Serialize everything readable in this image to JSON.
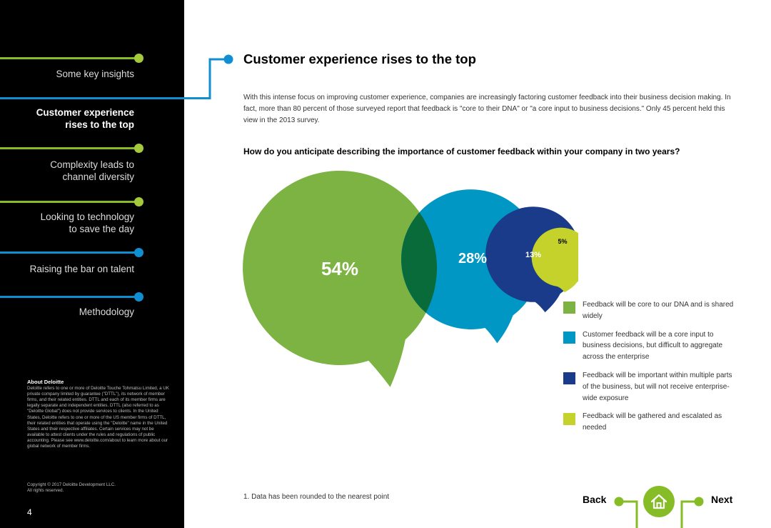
{
  "sidebar": {
    "items": [
      {
        "label": "Some key insights",
        "active": false
      },
      {
        "label": "Customer experience rises to the top",
        "line1": "Customer experience",
        "line2": "rises to the top",
        "active": true
      },
      {
        "label": "Complexity leads to channel diversity",
        "line1": "Complexity leads to",
        "line2": "channel diversity",
        "active": false
      },
      {
        "label": "Looking to technology to save the day",
        "line1": "Looking to technology",
        "line2": "to save the day",
        "active": false
      },
      {
        "label": "Raising the bar on talent",
        "active": false
      },
      {
        "label": "Methodology",
        "active": false
      }
    ],
    "about_title": "About Deloitte",
    "about_text": "Deloitte refers to one or more of Deloitte Touche Tohmatsu Limited, a UK private company limited by guarantee (\"DTTL\"), its network of member firms, and their related entities. DTTL and each of its member firms are legally separate and independent entities. DTTL (also referred to as \"Deloitte Global\") does not provide services to clients. In the United States, Deloitte refers to one or more of the US member firms of DTTL, their related entities that operate using the \"Deloitte\" name in the United States and their respective affiliates. Certain services may not be available to attest clients under the rules and regulations of public accounting. Please see www.deloitte.com/about to learn more about our global network of member firms.",
    "copyright_line1": "Copyright © 2017 Deloitte Development LLC.",
    "copyright_line2": "All rights reserved.",
    "page_number": "4"
  },
  "main": {
    "title": "Customer experience rises to the top",
    "intro": "With this intense focus on improving customer experience, companies are increasingly factoring customer feedback into their business decision making. In fact, more than 80 percent of those surveyed report that feedback is \"core to their DNA\" or \"a core input to business decisions.\" Only 45 percent held this view in the 2013 survey.",
    "question": "How do you anticipate describing the importance of customer feedback within your company in two years?",
    "footnote": "1. Data has been rounded to the nearest point"
  },
  "chart_data": {
    "type": "bubble",
    "title": "How do you anticipate describing the importance of customer feedback within your company in two years?",
    "series": [
      {
        "name": "Feedback will be core to our DNA and is shared widely",
        "value": 54,
        "label": "54%",
        "color": "#7cb342"
      },
      {
        "name": "Customer feedback will be a core input to business decisions, but difficult to aggregate across the enterprise",
        "value": 28,
        "label": "28%",
        "color": "#0097c4"
      },
      {
        "name": "Feedback will be important within multiple parts of the business, but will not receive enterprise-wide exposure",
        "value": 13,
        "label": "13%",
        "color": "#1a3a8a"
      },
      {
        "name": "Feedback will be gathered and escalated as needed",
        "value": 5,
        "label": "5%",
        "color": "#c4d22b"
      }
    ],
    "unit": "%",
    "legend_position": "right"
  },
  "colors": {
    "green": "#86bc25",
    "blue": "#0f8fd1",
    "overlap": "#0a6b3a"
  },
  "bottom_nav": {
    "back_label": "Back",
    "next_label": "Next",
    "home_icon": "home-icon"
  }
}
